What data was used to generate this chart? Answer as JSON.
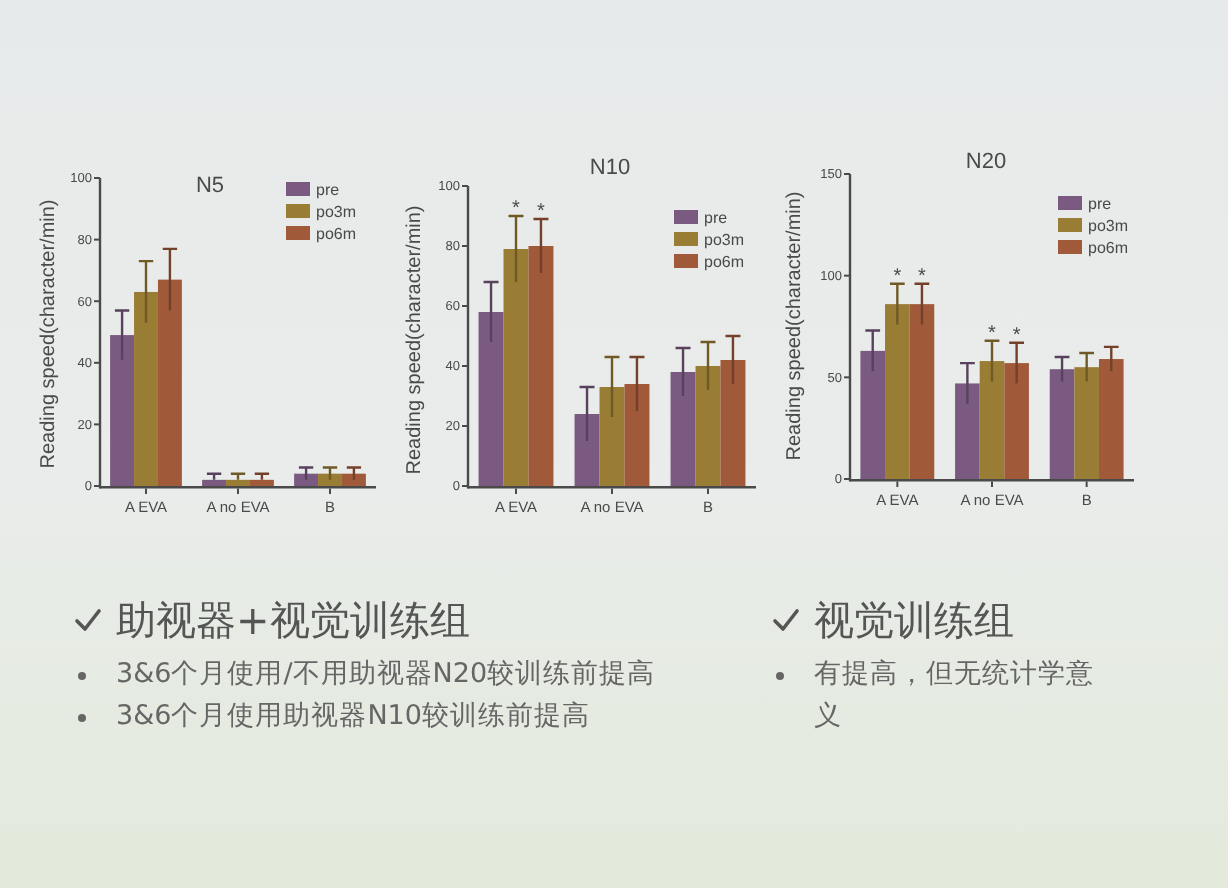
{
  "chart_data": [
    {
      "type": "bar",
      "title": "N5",
      "ylabel": "Reading speed(character/min)",
      "categories": [
        "A EVA",
        "A no EVA",
        "B"
      ],
      "series": [
        {
          "name": "pre",
          "color": "#7a5a80",
          "values": [
            49,
            2,
            4
          ],
          "errors": [
            8,
            [
              2,
              4
            ],
            2
          ]
        },
        {
          "name": "po3m",
          "color": "#9a7d35",
          "values": [
            63,
            2,
            4
          ],
          "errors": [
            10,
            [
              2,
              4
            ],
            2
          ]
        },
        {
          "name": "po6m",
          "color": "#a05a3a",
          "values": [
            67,
            2,
            4
          ],
          "errors": [
            10,
            [
              2,
              4
            ],
            2
          ]
        }
      ],
      "ylim": [
        0,
        100
      ],
      "yticks": [
        0,
        20,
        40,
        60,
        80,
        100
      ],
      "legend": "top right"
    },
    {
      "type": "bar",
      "title": "N10",
      "ylabel": "Reading speed(character/min)",
      "categories": [
        "A EVA",
        "A no EVA",
        "B"
      ],
      "series": [
        {
          "name": "pre",
          "color": "#7a5a80",
          "values": [
            58,
            24,
            38
          ],
          "errors": [
            10,
            9,
            8
          ]
        },
        {
          "name": "po3m",
          "color": "#9a7d35",
          "values": [
            79,
            33,
            40
          ],
          "errors": [
            11,
            10,
            8
          ],
          "value_labels": [
            "*",
            null,
            null
          ]
        },
        {
          "name": "po6m",
          "color": "#a05a3a",
          "values": [
            80,
            34,
            42
          ],
          "errors": [
            9,
            9,
            8
          ],
          "value_labels": [
            "*",
            null,
            null
          ]
        }
      ],
      "ylim": [
        0,
        100
      ],
      "yticks": [
        0,
        20,
        40,
        60,
        80,
        100
      ],
      "legend": "top right"
    },
    {
      "type": "bar",
      "title": "N20",
      "ylabel": "Reading speed(character/min)",
      "categories": [
        "A EVA",
        "A no EVA",
        "B"
      ],
      "series": [
        {
          "name": "pre",
          "color": "#7a5a80",
          "values": [
            63,
            47,
            54
          ],
          "errors": [
            10,
            10,
            6
          ]
        },
        {
          "name": "po3m",
          "color": "#9a7d35",
          "values": [
            86,
            58,
            55
          ],
          "errors": [
            10,
            10,
            7
          ],
          "value_labels": [
            "*",
            "*",
            null
          ]
        },
        {
          "name": "po6m",
          "color": "#a05a3a",
          "values": [
            86,
            57,
            59
          ],
          "errors": [
            10,
            10,
            6
          ],
          "value_labels": [
            "*",
            "*",
            null
          ]
        }
      ],
      "ylim": [
        0,
        150
      ],
      "yticks": [
        0,
        50,
        100,
        150
      ],
      "legend": "top right"
    },
    {
      "type": "other",
      "title": "助视器+视觉训练组",
      "annotations": [
        "3&6个月使用/不用助视器N20较训练前提高",
        "3&6个月使用助视器N10较训练前提高"
      ]
    },
    {
      "type": "other",
      "title": "视觉训练组",
      "annotations": [
        "有提高，但无统计学意义"
      ]
    }
  ]
}
